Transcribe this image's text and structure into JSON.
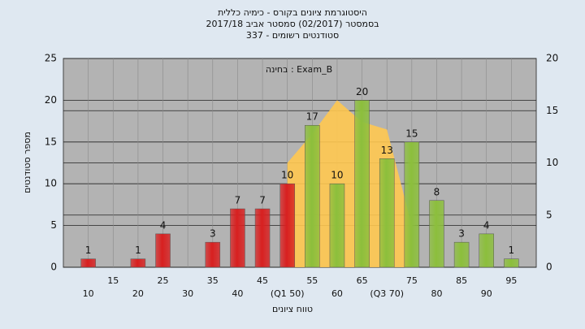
{
  "chart_data": {
    "type": "bar",
    "title": [
      "היסטוגרמת ציונים בקורס - כימיה כללית",
      "בסמסטר (02/2017) סמסטר אביב 2017/18",
      "סטודנטים רשומים - 337"
    ],
    "annotation": "בחינה : Exam_B",
    "ylabel": "מספר סטודנטים",
    "xlabel": "טווח ציונים",
    "categories": [
      "10",
      "15",
      "20",
      "25",
      "30",
      "35",
      "40",
      "45",
      "(Q1 50)",
      "55",
      "60",
      "65",
      "(Q3 70)",
      "75",
      "80",
      "85",
      "90",
      "95"
    ],
    "values": [
      1,
      null,
      1,
      4,
      null,
      3,
      7,
      7,
      10,
      17,
      10,
      20,
      13,
      15,
      8,
      3,
      4,
      1
    ],
    "colors": [
      "#d82020",
      "#d82020",
      "#d82020",
      "#d82020",
      "#d82020",
      "#d82020",
      "#d82020",
      "#d82020",
      "#d82020",
      "#8cbf3c",
      "#8cbf3c",
      "#8cbf3c",
      "#8cbf3c",
      "#8cbf3c",
      "#8cbf3c",
      "#8cbf3c",
      "#8cbf3c",
      "#8cbf3c"
    ],
    "area": {
      "color": "#ffc850",
      "values": [
        null,
        null,
        null,
        null,
        null,
        null,
        null,
        null,
        12.5,
        16,
        20,
        17.4,
        16.5,
        5,
        null,
        null,
        null,
        null
      ]
    },
    "ylim": [
      0,
      25
    ],
    "yticks": [
      0,
      5,
      10,
      15,
      20,
      25
    ],
    "y2lim": [
      0,
      20
    ],
    "y2ticks": [
      0,
      5,
      10,
      15,
      20
    ],
    "grid": true
  }
}
